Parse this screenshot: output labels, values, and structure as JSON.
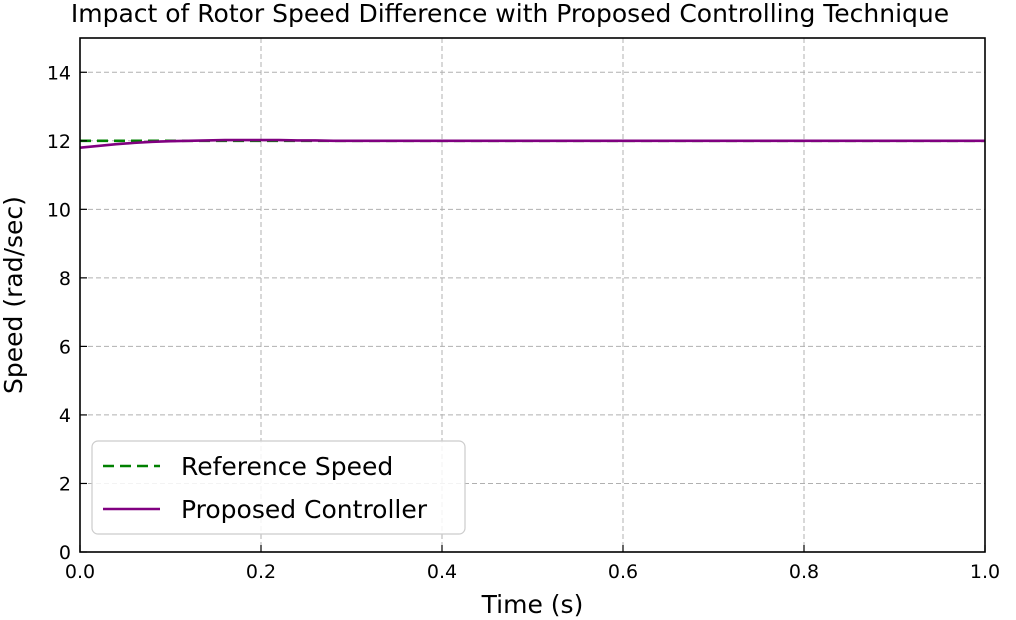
{
  "chart_data": {
    "type": "line",
    "title": "Impact of Rotor Speed Difference with Proposed Controlling Technique",
    "xlabel": "Time (s)",
    "ylabel": "Speed (rad/sec)",
    "xlim": [
      0,
      1
    ],
    "ylim": [
      0,
      15
    ],
    "xticks": [
      0.0,
      0.2,
      0.4,
      0.6,
      0.8,
      1.0
    ],
    "xtick_labels": [
      "0.0",
      "0.2",
      "0.4",
      "0.6",
      "0.8",
      "1.0"
    ],
    "yticks": [
      0,
      2,
      4,
      6,
      8,
      10,
      12,
      14
    ],
    "ytick_labels": [
      "0",
      "2",
      "4",
      "6",
      "8",
      "10",
      "12",
      "14"
    ],
    "grid": true,
    "legend_position": "lower-left",
    "series": [
      {
        "name": "Reference Speed",
        "style": "dashed",
        "color": "#008000",
        "x": [
          0.0,
          0.1,
          0.2,
          0.3,
          0.4,
          0.5,
          0.6,
          0.7,
          0.8,
          0.9,
          1.0
        ],
        "y": [
          12,
          12,
          12,
          12,
          12,
          12,
          12,
          12,
          12,
          12,
          12
        ]
      },
      {
        "name": "Proposed Controller",
        "style": "solid",
        "color": "#800080",
        "x": [
          0.0,
          0.02,
          0.04,
          0.06,
          0.08,
          0.1,
          0.12,
          0.14,
          0.16,
          0.18,
          0.2,
          0.22,
          0.24,
          0.26,
          0.28,
          0.3,
          0.35,
          0.4,
          0.5,
          0.6,
          0.7,
          0.8,
          0.9,
          1.0
        ],
        "y": [
          11.8,
          11.85,
          11.9,
          11.94,
          11.97,
          11.99,
          12.0,
          12.01,
          12.02,
          12.02,
          12.02,
          12.02,
          12.01,
          12.01,
          12.0,
          12.0,
          12.0,
          12.0,
          12.0,
          12.0,
          12.0,
          12.0,
          12.0,
          12.0
        ]
      }
    ]
  }
}
